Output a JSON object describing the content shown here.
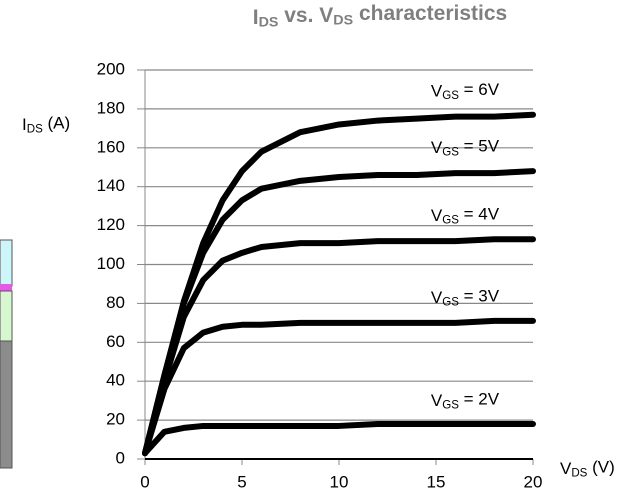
{
  "chart_data": {
    "type": "line",
    "title": [
      "I",
      "DS",
      " vs. V",
      "DS",
      "  characteristics"
    ],
    "y_label": [
      "I",
      "DS",
      " (A)"
    ],
    "x_label": [
      "V",
      "DS",
      " (V)"
    ],
    "x": [
      0,
      1,
      2,
      3,
      4,
      5,
      6,
      8,
      10,
      12,
      14,
      16,
      18,
      20
    ],
    "xlim": [
      0,
      20
    ],
    "xticks": [
      0,
      5,
      10,
      15,
      20
    ],
    "ylim": [
      0,
      200
    ],
    "yticks": [
      0,
      20,
      40,
      60,
      80,
      100,
      120,
      140,
      160,
      180,
      200
    ],
    "grid": true,
    "color": "#000000",
    "series": [
      {
        "name": [
          "V",
          "GS",
          " = 6V"
        ],
        "values": [
          3,
          43,
          81,
          111,
          133,
          148,
          158,
          168,
          172,
          174,
          175,
          176,
          176,
          177
        ]
      },
      {
        "name": [
          "V",
          "GS",
          " = 5V"
        ],
        "values": [
          3,
          43,
          80,
          106,
          123,
          133,
          139,
          143,
          145,
          146,
          146,
          147,
          147,
          148
        ]
      },
      {
        "name": [
          "V",
          "GS",
          " = 4V"
        ],
        "values": [
          3,
          40,
          73,
          92,
          102,
          106,
          109,
          111,
          111,
          112,
          112,
          112,
          113,
          113
        ]
      },
      {
        "name": [
          "V",
          "GS",
          " = 3V"
        ],
        "values": [
          3,
          36,
          57,
          65,
          68,
          69,
          69,
          70,
          70,
          70,
          70,
          70,
          71,
          71
        ]
      },
      {
        "name": [
          "V",
          "GS",
          " = 2V"
        ],
        "values": [
          3,
          14,
          16,
          17,
          17,
          17,
          17,
          17,
          17,
          18,
          18,
          18,
          18,
          18
        ]
      }
    ]
  }
}
